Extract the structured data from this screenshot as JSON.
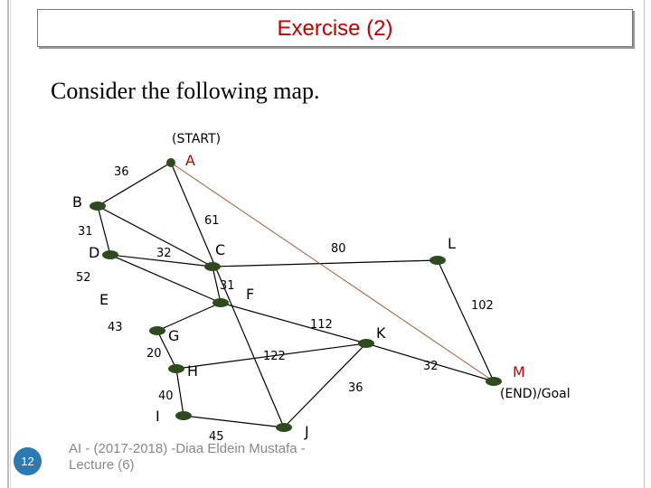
{
  "slide": {
    "title": "Exercise (2)",
    "subtitle": "Consider the following map.",
    "footer": "AI - (2017-2018) -Diaa Eldein Mustafa - Lecture (6)",
    "page_number": "12",
    "title_color": "#c00000",
    "page_badge_color": "#2b7ab3"
  },
  "graph": {
    "start_label": "(START)",
    "goal_label": "(END)/Goal",
    "start_node": "A",
    "goal_node": "M",
    "node_color": "#2e4a1e",
    "edge_color": "#000000",
    "heuristic_line_color": "#9e5a3a",
    "nodes": [
      {
        "id": "A",
        "label": "A"
      },
      {
        "id": "B",
        "label": "B"
      },
      {
        "id": "C",
        "label": "C"
      },
      {
        "id": "D",
        "label": "D"
      },
      {
        "id": "E",
        "label": "E"
      },
      {
        "id": "F",
        "label": "F"
      },
      {
        "id": "G",
        "label": "G"
      },
      {
        "id": "H",
        "label": "H"
      },
      {
        "id": "I",
        "label": "I"
      },
      {
        "id": "J",
        "label": "J"
      },
      {
        "id": "K",
        "label": "K"
      },
      {
        "id": "L",
        "label": "L"
      },
      {
        "id": "M",
        "label": "M"
      }
    ],
    "edges": [
      {
        "from": "A",
        "to": "B",
        "cost": "36"
      },
      {
        "from": "B",
        "to": "C",
        "cost": "61"
      },
      {
        "from": "B",
        "to": "D",
        "cost": "31"
      },
      {
        "from": "D",
        "to": "C",
        "cost": "32"
      },
      {
        "from": "D",
        "to": "E",
        "cost": "52"
      },
      {
        "from": "C",
        "to": "E",
        "cost": "31"
      },
      {
        "from": "C",
        "to": "L",
        "cost": "80"
      },
      {
        "from": "E",
        "to": "G",
        "cost": "43"
      },
      {
        "from": "E",
        "to": "K",
        "cost": "112"
      },
      {
        "from": "L",
        "to": "M",
        "cost": "102"
      },
      {
        "from": "G",
        "to": "H",
        "cost": "20"
      },
      {
        "from": "H",
        "to": "K",
        "cost": "122"
      },
      {
        "from": "H",
        "to": "I",
        "cost": "40"
      },
      {
        "from": "I",
        "to": "J",
        "cost": "45"
      },
      {
        "from": "J",
        "to": "K",
        "cost": "36"
      },
      {
        "from": "K",
        "to": "M",
        "cost": "32"
      },
      {
        "from": "A",
        "to": "J",
        "cost": ""
      },
      {
        "from": "A",
        "to": "M",
        "cost": ""
      }
    ]
  }
}
